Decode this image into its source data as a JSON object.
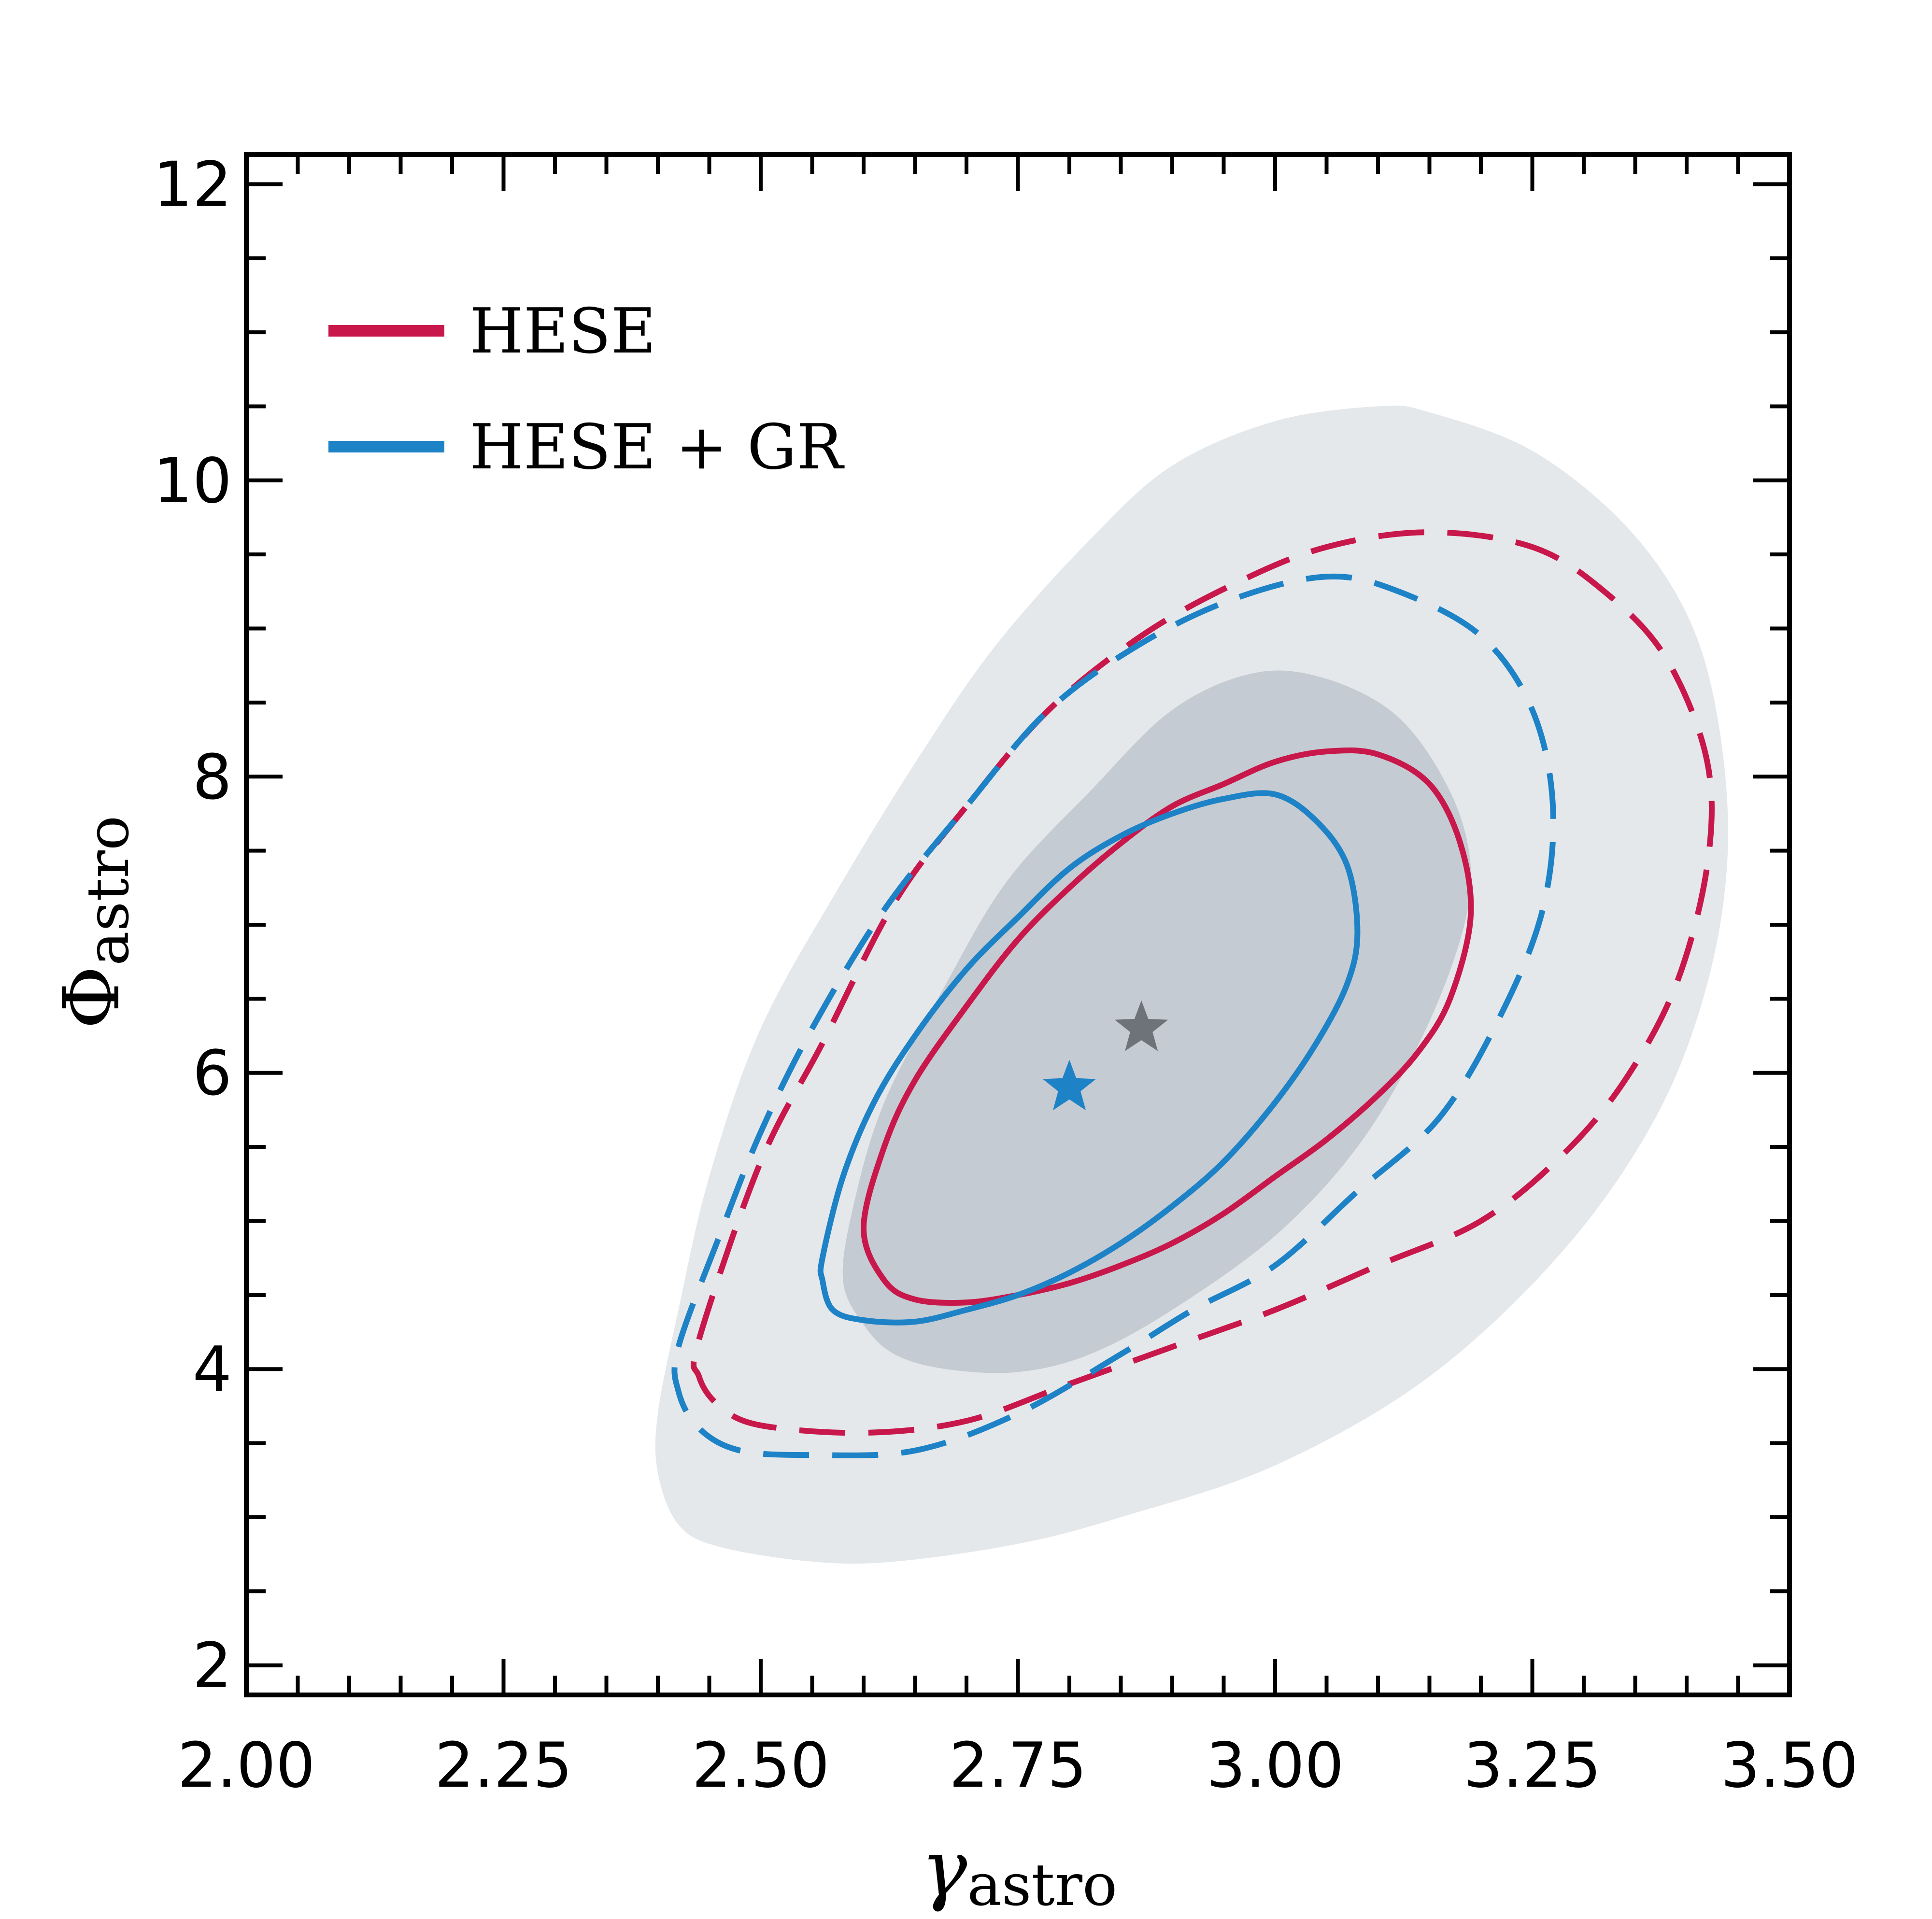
{
  "chart_data": {
    "type": "contour",
    "xlabel": {
      "symbol": "γ",
      "subscript": "astro"
    },
    "ylabel": {
      "symbol": "Φ",
      "subscript": "astro"
    },
    "xlim": [
      2.0,
      3.5
    ],
    "ylim": [
      1.8,
      12.2
    ],
    "xticks": [
      2.0,
      2.25,
      2.5,
      2.75,
      3.0,
      3.25,
      3.5
    ],
    "xtick_labels": [
      "2.00",
      "2.25",
      "2.50",
      "2.75",
      "3.00",
      "3.25",
      "3.50"
    ],
    "yticks": [
      2,
      4,
      6,
      8,
      10,
      12
    ],
    "ytick_labels": [
      "2",
      "4",
      "6",
      "8",
      "10",
      "12"
    ],
    "x_minor_step": 0.05,
    "y_minor_step": 0.5,
    "legend": {
      "position": "top-left",
      "entries": [
        {
          "label": "HESE",
          "color": "#c8174b"
        },
        {
          "label": "HESE + GR",
          "color": "#1d82c6"
        }
      ]
    },
    "colors": {
      "hese": "#c8174b",
      "hese_gr": "#1d82c6",
      "reference_outer": "#e5e8eb",
      "reference_inner": "#c5cbd2",
      "reference_star": "#6e737a"
    },
    "reference_regions": [
      {
        "name": "reference-68",
        "fill": "#c5cbd2",
        "points": [
          [
            2.6,
            4.3
          ],
          [
            2.63,
            4.1
          ],
          [
            2.68,
            4.0
          ],
          [
            2.75,
            3.98
          ],
          [
            2.82,
            4.1
          ],
          [
            2.9,
            4.4
          ],
          [
            3.0,
            4.9
          ],
          [
            3.08,
            5.5
          ],
          [
            3.14,
            6.2
          ],
          [
            3.18,
            6.9
          ],
          [
            3.19,
            7.4
          ],
          [
            3.17,
            7.9
          ],
          [
            3.12,
            8.4
          ],
          [
            3.05,
            8.66
          ],
          [
            2.98,
            8.7
          ],
          [
            2.9,
            8.45
          ],
          [
            2.82,
            7.9
          ],
          [
            2.74,
            7.3
          ],
          [
            2.68,
            6.6
          ],
          [
            2.62,
            5.8
          ],
          [
            2.59,
            5.1
          ],
          [
            2.58,
            4.6
          ]
        ]
      },
      {
        "name": "reference-95",
        "fill": "#e5e8eb",
        "points": [
          [
            2.4,
            3.3
          ],
          [
            2.42,
            2.95
          ],
          [
            2.46,
            2.8
          ],
          [
            2.55,
            2.7
          ],
          [
            2.63,
            2.7
          ],
          [
            2.75,
            2.82
          ],
          [
            2.85,
            3.0
          ],
          [
            3.0,
            3.35
          ],
          [
            3.15,
            3.95
          ],
          [
            3.28,
            4.8
          ],
          [
            3.37,
            5.7
          ],
          [
            3.42,
            6.6
          ],
          [
            3.44,
            7.5
          ],
          [
            3.43,
            8.4
          ],
          [
            3.4,
            9.1
          ],
          [
            3.34,
            9.7
          ],
          [
            3.25,
            10.2
          ],
          [
            3.15,
            10.46
          ],
          [
            3.1,
            10.5
          ],
          [
            3.0,
            10.4
          ],
          [
            2.9,
            10.1
          ],
          [
            2.82,
            9.6
          ],
          [
            2.73,
            8.9
          ],
          [
            2.66,
            8.2
          ],
          [
            2.58,
            7.3
          ],
          [
            2.5,
            6.3
          ],
          [
            2.45,
            5.3
          ],
          [
            2.42,
            4.4
          ],
          [
            2.4,
            3.7
          ]
        ]
      }
    ],
    "series": [
      {
        "name": "HESE",
        "level": "68% (solid)",
        "points": [
          [
            2.6,
            4.95
          ],
          [
            2.62,
            5.5
          ],
          [
            2.65,
            5.95
          ],
          [
            2.7,
            6.45
          ],
          [
            2.75,
            6.9
          ],
          [
            2.8,
            7.25
          ],
          [
            2.85,
            7.55
          ],
          [
            2.9,
            7.8
          ],
          [
            2.95,
            7.95
          ],
          [
            3.0,
            8.1
          ],
          [
            3.05,
            8.17
          ],
          [
            3.1,
            8.15
          ],
          [
            3.15,
            7.95
          ],
          [
            3.18,
            7.55
          ],
          [
            3.19,
            7.05
          ],
          [
            3.17,
            6.5
          ],
          [
            3.14,
            6.15
          ],
          [
            3.1,
            5.85
          ],
          [
            3.05,
            5.55
          ],
          [
            3.0,
            5.3
          ],
          [
            2.95,
            5.05
          ],
          [
            2.9,
            4.85
          ],
          [
            2.85,
            4.7
          ],
          [
            2.8,
            4.58
          ],
          [
            2.75,
            4.5
          ],
          [
            2.7,
            4.45
          ],
          [
            2.65,
            4.47
          ],
          [
            2.62,
            4.6
          ]
        ]
      },
      {
        "name": "HESE",
        "level": "95% (dashed)",
        "points": [
          [
            2.44,
            4.2
          ],
          [
            2.5,
            5.4
          ],
          [
            2.56,
            6.2
          ],
          [
            2.63,
            7.15
          ],
          [
            2.7,
            7.8
          ],
          [
            2.78,
            8.45
          ],
          [
            2.87,
            8.95
          ],
          [
            2.96,
            9.3
          ],
          [
            3.05,
            9.55
          ],
          [
            3.15,
            9.65
          ],
          [
            3.25,
            9.55
          ],
          [
            3.32,
            9.25
          ],
          [
            3.38,
            8.8
          ],
          [
            3.42,
            8.1
          ],
          [
            3.42,
            7.4
          ],
          [
            3.39,
            6.6
          ],
          [
            3.34,
            5.95
          ],
          [
            3.28,
            5.45
          ],
          [
            3.2,
            5.0
          ],
          [
            3.1,
            4.7
          ],
          [
            3.0,
            4.4
          ],
          [
            2.9,
            4.15
          ],
          [
            2.8,
            3.9
          ],
          [
            2.7,
            3.65
          ],
          [
            2.6,
            3.57
          ],
          [
            2.5,
            3.62
          ],
          [
            2.46,
            3.75
          ],
          [
            2.44,
            3.95
          ]
        ]
      },
      {
        "name": "HESE + GR",
        "level": "68% (solid)",
        "points": [
          [
            2.56,
            4.75
          ],
          [
            2.58,
            5.3
          ],
          [
            2.61,
            5.8
          ],
          [
            2.65,
            6.25
          ],
          [
            2.7,
            6.7
          ],
          [
            2.75,
            7.05
          ],
          [
            2.8,
            7.38
          ],
          [
            2.85,
            7.6
          ],
          [
            2.9,
            7.75
          ],
          [
            2.95,
            7.85
          ],
          [
            3.0,
            7.88
          ],
          [
            3.04,
            7.7
          ],
          [
            3.07,
            7.4
          ],
          [
            3.08,
            6.95
          ],
          [
            3.07,
            6.6
          ],
          [
            3.04,
            6.2
          ],
          [
            3.0,
            5.8
          ],
          [
            2.95,
            5.4
          ],
          [
            2.9,
            5.1
          ],
          [
            2.85,
            4.85
          ],
          [
            2.8,
            4.65
          ],
          [
            2.75,
            4.5
          ],
          [
            2.7,
            4.4
          ],
          [
            2.65,
            4.32
          ],
          [
            2.6,
            4.33
          ],
          [
            2.57,
            4.4
          ],
          [
            2.56,
            4.6
          ]
        ]
      },
      {
        "name": "HESE + GR",
        "level": "95% (dashed)",
        "points": [
          [
            2.42,
            4.15
          ],
          [
            2.46,
            4.9
          ],
          [
            2.5,
            5.6
          ],
          [
            2.55,
            6.3
          ],
          [
            2.62,
            7.1
          ],
          [
            2.7,
            7.8
          ],
          [
            2.78,
            8.45
          ],
          [
            2.87,
            8.9
          ],
          [
            2.96,
            9.2
          ],
          [
            3.05,
            9.35
          ],
          [
            3.12,
            9.25
          ],
          [
            3.2,
            8.95
          ],
          [
            3.25,
            8.45
          ],
          [
            3.27,
            7.8
          ],
          [
            3.26,
            7.1
          ],
          [
            3.22,
            6.4
          ],
          [
            3.16,
            5.7
          ],
          [
            3.08,
            5.2
          ],
          [
            3.0,
            4.7
          ],
          [
            2.92,
            4.4
          ],
          [
            2.85,
            4.1
          ],
          [
            2.75,
            3.7
          ],
          [
            2.65,
            3.45
          ],
          [
            2.55,
            3.42
          ],
          [
            2.48,
            3.45
          ],
          [
            2.44,
            3.6
          ],
          [
            2.42,
            3.85
          ]
        ]
      }
    ],
    "best_fit": [
      {
        "name": "reference-best-fit",
        "x": 2.87,
        "y": 6.3,
        "color": "#6e737a"
      },
      {
        "name": "hese-gr-best-fit",
        "x": 2.8,
        "y": 5.9,
        "color": "#1d82c6"
      }
    ]
  }
}
